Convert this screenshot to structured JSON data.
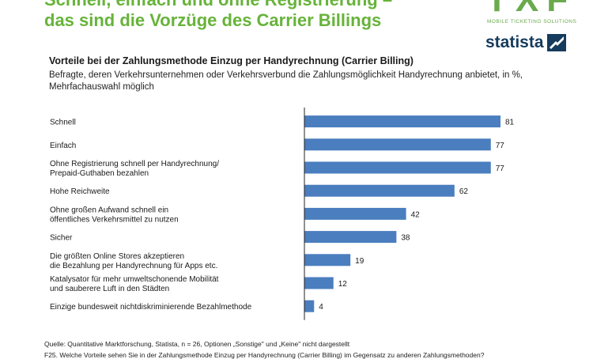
{
  "headline": {
    "line1": "Schnell, einfach und ohne Registrierung –",
    "line2": "das sind die Vorzüge des Carrier Billings"
  },
  "logos": {
    "txf": "TXF",
    "txf_tagline": "MOBILE TICKETING SOLUTIONS",
    "statista": "statista"
  },
  "colors": {
    "bar": "#4a7ebf",
    "headline": "#67b33a",
    "axis": "#222222"
  },
  "chart_data": {
    "type": "bar",
    "orientation": "horizontal",
    "title": "Vorteile bei der Zahlungsmethode Einzug per Handyrechnung (Carrier Billing)",
    "subtitle": "Befragte, deren Verkehrsunternehmen oder Verkehrsverbund die Zahlungsmöglichkeit Handyrechnung anbietet, in %, Mehrfachauswahl möglich",
    "categories": [
      [
        "Schnell"
      ],
      [
        "Einfach"
      ],
      [
        "Ohne Registrierung schnell per Handyrechnung/",
        "Prepaid-Guthaben bezahlen"
      ],
      [
        "Hohe Reichweite"
      ],
      [
        "Ohne großen Aufwand schnell ein",
        "öffentliches Verkehrsmittel zu nutzen"
      ],
      [
        "Sicher"
      ],
      [
        "Die größten Online Stores akzeptieren",
        "die Bezahlung per Handyrechnung für Apps etc."
      ],
      [
        "Katalysator für mehr umweltschonende Mobilität",
        "und sauberere Luft in den Städten"
      ],
      [
        "Einzige bundesweit nichtdiskriminierende Bezahlmethode"
      ]
    ],
    "values": [
      81,
      77,
      77,
      62,
      42,
      38,
      19,
      12,
      4
    ],
    "xlim": [
      0,
      81
    ],
    "grid": false,
    "legend": "none"
  },
  "footer": {
    "source": "Quelle: Quantitative Marktforschung, Statista, n = 26, Optionen „Sonstige\" und „Keine\" nicht dargestellt",
    "question": "F25. Welche Vorteile sehen Sie in der Zahlungsmethode Einzug per Handyrechnung (Carrier Billing) im Gegensatz zu anderen Zahlungsmethoden?"
  }
}
